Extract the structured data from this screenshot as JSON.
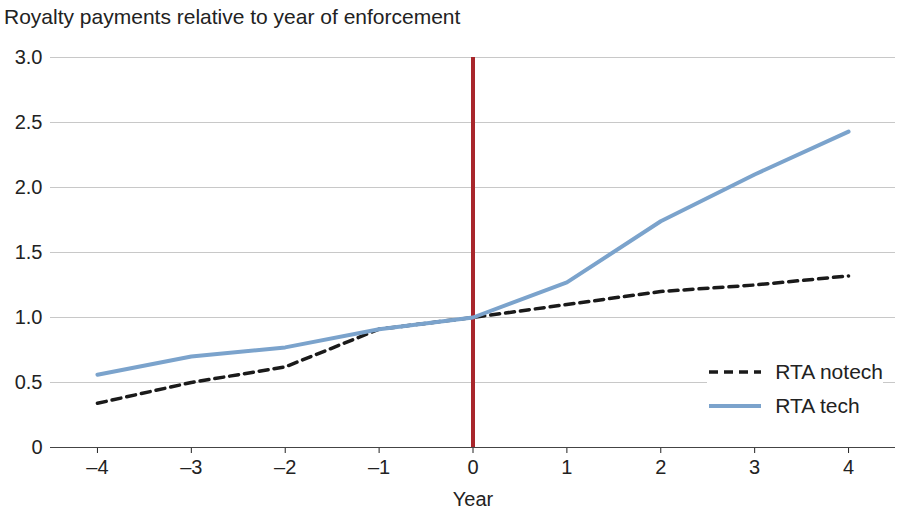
{
  "chart_data": {
    "type": "line",
    "title": "Royalty payments relative to year of enforcement",
    "x_label": "Year",
    "x": [
      -4,
      -3,
      -2,
      -1,
      0,
      1,
      2,
      3,
      4
    ],
    "series": [
      {
        "name": "RTA notech",
        "color": "#1a1a1a",
        "line_style": "dashed",
        "values": [
          0.34,
          0.5,
          0.62,
          0.91,
          1.0,
          1.1,
          1.2,
          1.25,
          1.32
        ]
      },
      {
        "name": "RTA tech",
        "color": "#7ba3cc",
        "line_style": "solid",
        "values": [
          0.56,
          0.7,
          0.77,
          0.91,
          1.0,
          1.27,
          1.74,
          2.1,
          2.43
        ]
      }
    ],
    "xlim": [
      -4.5,
      4.5
    ],
    "xticks": [
      {
        "value": -4,
        "label": "–4"
      },
      {
        "value": -3,
        "label": "–3"
      },
      {
        "value": -2,
        "label": "–2"
      },
      {
        "value": -1,
        "label": "–1"
      },
      0,
      1,
      2,
      3,
      4
    ],
    "ylim": [
      0,
      3
    ],
    "yticks": [
      0,
      0.5,
      {
        "value": 1,
        "label": "1.0"
      },
      1.5,
      {
        "value": 2,
        "label": "2.0"
      },
      2.5,
      {
        "value": 3,
        "label": "3.0"
      }
    ],
    "grid": true,
    "legend": "bottom-right",
    "reference_lines": [
      {
        "x": 0,
        "color": "#a8262b"
      }
    ]
  }
}
